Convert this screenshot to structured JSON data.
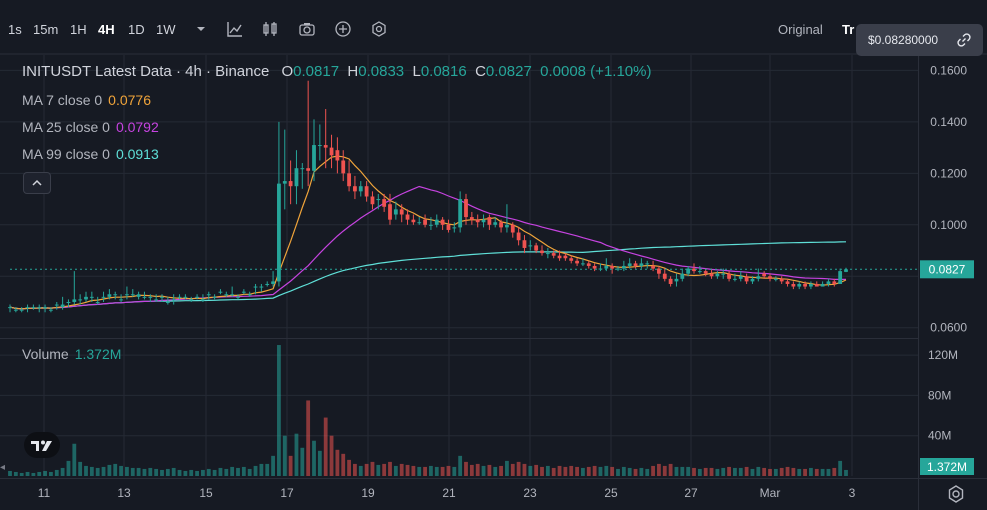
{
  "toolbar": {
    "timeframes": [
      "1s",
      "15m",
      "1H",
      "4H",
      "1D",
      "1W"
    ],
    "active_timeframe": "4H",
    "view_original": "Original",
    "view_tr": "Tr",
    "icons": [
      "chevron-down-icon",
      "indicators-icon",
      "candles-icon",
      "camera-icon",
      "plus-circle-icon",
      "settings-hex-icon"
    ]
  },
  "price_tooltip": {
    "value": "$0.08280000",
    "icon": "link-icon"
  },
  "legend": {
    "symbol_line": "INITUSDT Latest Data · 4h · Binance",
    "ohlc": {
      "o_label": "O",
      "o": "0.0817",
      "h_label": "H",
      "h": "0.0833",
      "l_label": "L",
      "l": "0.0816",
      "c_label": "C",
      "c": "0.0827",
      "change": "0.0008 (+1.10%)"
    },
    "ma7": {
      "label": "MA 7 close 0",
      "value": "0.0776",
      "color": "#f0a43a"
    },
    "ma25": {
      "label": "MA 25 close 0",
      "value": "0.0792",
      "color": "#c643e0"
    },
    "ma99": {
      "label": "MA 99 close 0",
      "value": "0.0913",
      "color": "#5fe0d8"
    },
    "collapse_icon": "chevron-up-icon"
  },
  "volume_legend": {
    "label": "Volume",
    "value": "1.372M"
  },
  "colors": {
    "up": "#26a69a",
    "down": "#ef5350",
    "bg": "#161a23",
    "grid": "#252a35"
  },
  "chart_data": {
    "type": "candlestick",
    "x_ticks": [
      "11",
      "13",
      "15",
      "17",
      "19",
      "21",
      "23",
      "25",
      "27",
      "Mar",
      "3"
    ],
    "price_axis": {
      "ticks": [
        "0.1600",
        "0.1400",
        "0.1200",
        "0.1000",
        "0.0600"
      ],
      "ylim": [
        0.056,
        0.166
      ]
    },
    "last_price": "0.0827",
    "volume_axis": {
      "ticks": [
        "120M",
        "80M",
        "40M"
      ],
      "ylim": [
        0,
        135
      ]
    },
    "last_volume": "1.372M",
    "candles": [
      [
        0.068,
        0.068,
        0.069,
        0.066,
        5
      ],
      [
        0.067,
        0.067,
        0.068,
        0.066,
        4
      ],
      [
        0.067,
        0.067,
        0.068,
        0.066,
        3
      ],
      [
        0.068,
        0.068,
        0.069,
        0.066,
        4
      ],
      [
        0.068,
        0.068,
        0.069,
        0.067,
        3
      ],
      [
        0.068,
        0.068,
        0.069,
        0.066,
        4
      ],
      [
        0.068,
        0.068,
        0.069,
        0.066,
        5
      ],
      [
        0.067,
        0.067,
        0.068,
        0.066,
        4
      ],
      [
        0.069,
        0.069,
        0.07,
        0.067,
        6
      ],
      [
        0.068,
        0.069,
        0.072,
        0.067,
        8
      ],
      [
        0.07,
        0.07,
        0.071,
        0.068,
        15
      ],
      [
        0.07,
        0.071,
        0.082,
        0.069,
        32
      ],
      [
        0.071,
        0.071,
        0.073,
        0.069,
        14
      ],
      [
        0.071,
        0.072,
        0.074,
        0.07,
        10
      ],
      [
        0.072,
        0.072,
        0.074,
        0.07,
        9
      ],
      [
        0.07,
        0.07,
        0.072,
        0.069,
        8
      ],
      [
        0.072,
        0.072,
        0.074,
        0.07,
        9
      ],
      [
        0.072,
        0.073,
        0.075,
        0.071,
        11
      ],
      [
        0.073,
        0.073,
        0.074,
        0.071,
        12
      ],
      [
        0.071,
        0.071,
        0.073,
        0.07,
        10
      ],
      [
        0.073,
        0.073,
        0.076,
        0.071,
        9
      ],
      [
        0.073,
        0.073,
        0.075,
        0.072,
        8
      ],
      [
        0.072,
        0.073,
        0.074,
        0.071,
        8
      ],
      [
        0.072,
        0.072,
        0.074,
        0.071,
        7
      ],
      [
        0.072,
        0.072,
        0.073,
        0.07,
        8
      ],
      [
        0.071,
        0.071,
        0.073,
        0.07,
        7
      ],
      [
        0.072,
        0.072,
        0.073,
        0.07,
        6
      ],
      [
        0.07,
        0.07,
        0.072,
        0.069,
        7
      ],
      [
        0.071,
        0.071,
        0.073,
        0.069,
        8
      ],
      [
        0.072,
        0.072,
        0.073,
        0.071,
        6
      ],
      [
        0.072,
        0.072,
        0.073,
        0.071,
        5
      ],
      [
        0.071,
        0.071,
        0.072,
        0.07,
        6
      ],
      [
        0.072,
        0.072,
        0.073,
        0.071,
        5
      ],
      [
        0.071,
        0.071,
        0.073,
        0.07,
        6
      ],
      [
        0.073,
        0.073,
        0.074,
        0.071,
        7
      ],
      [
        0.072,
        0.072,
        0.073,
        0.071,
        6
      ],
      [
        0.074,
        0.074,
        0.075,
        0.073,
        8
      ],
      [
        0.073,
        0.073,
        0.074,
        0.072,
        7
      ],
      [
        0.073,
        0.073,
        0.076,
        0.072,
        9
      ],
      [
        0.072,
        0.072,
        0.073,
        0.071,
        8
      ],
      [
        0.074,
        0.074,
        0.075,
        0.073,
        9
      ],
      [
        0.073,
        0.073,
        0.074,
        0.072,
        7
      ],
      [
        0.076,
        0.076,
        0.077,
        0.073,
        10
      ],
      [
        0.076,
        0.076,
        0.077,
        0.074,
        12
      ],
      [
        0.077,
        0.077,
        0.078,
        0.076,
        12
      ],
      [
        0.077,
        0.078,
        0.082,
        0.076,
        20
      ],
      [
        0.078,
        0.116,
        0.14,
        0.076,
        130
      ],
      [
        0.116,
        0.117,
        0.137,
        0.106,
        40
      ],
      [
        0.117,
        0.115,
        0.125,
        0.108,
        20
      ],
      [
        0.115,
        0.122,
        0.129,
        0.108,
        42
      ],
      [
        0.122,
        0.122,
        0.124,
        0.114,
        28
      ],
      [
        0.122,
        0.121,
        0.156,
        0.115,
        75
      ],
      [
        0.121,
        0.131,
        0.141,
        0.117,
        35
      ],
      [
        0.131,
        0.131,
        0.139,
        0.125,
        25
      ],
      [
        0.131,
        0.13,
        0.145,
        0.122,
        58
      ],
      [
        0.13,
        0.127,
        0.135,
        0.122,
        40
      ],
      [
        0.129,
        0.125,
        0.134,
        0.12,
        26
      ],
      [
        0.125,
        0.12,
        0.129,
        0.117,
        22
      ],
      [
        0.12,
        0.115,
        0.125,
        0.113,
        16
      ],
      [
        0.115,
        0.113,
        0.119,
        0.11,
        12
      ],
      [
        0.113,
        0.115,
        0.117,
        0.111,
        10
      ],
      [
        0.115,
        0.111,
        0.117,
        0.109,
        12
      ],
      [
        0.111,
        0.108,
        0.113,
        0.106,
        14
      ],
      [
        0.11,
        0.11,
        0.112,
        0.106,
        11
      ],
      [
        0.11,
        0.107,
        0.112,
        0.105,
        12
      ],
      [
        0.108,
        0.102,
        0.112,
        0.1,
        14
      ],
      [
        0.104,
        0.106,
        0.109,
        0.102,
        10
      ],
      [
        0.106,
        0.104,
        0.108,
        0.101,
        12
      ],
      [
        0.104,
        0.102,
        0.106,
        0.1,
        11
      ],
      [
        0.102,
        0.101,
        0.104,
        0.1,
        10
      ],
      [
        0.101,
        0.101,
        0.103,
        0.1,
        9
      ],
      [
        0.102,
        0.1,
        0.104,
        0.099,
        9
      ],
      [
        0.1,
        0.1,
        0.103,
        0.098,
        10
      ],
      [
        0.1,
        0.102,
        0.104,
        0.099,
        9
      ],
      [
        0.102,
        0.1,
        0.103,
        0.098,
        9
      ],
      [
        0.1,
        0.098,
        0.102,
        0.097,
        10
      ],
      [
        0.099,
        0.099,
        0.101,
        0.097,
        9
      ],
      [
        0.099,
        0.11,
        0.113,
        0.097,
        20
      ],
      [
        0.11,
        0.103,
        0.112,
        0.1,
        14
      ],
      [
        0.103,
        0.102,
        0.105,
        0.1,
        11
      ],
      [
        0.102,
        0.101,
        0.104,
        0.099,
        12
      ],
      [
        0.101,
        0.102,
        0.104,
        0.099,
        10
      ],
      [
        0.103,
        0.1,
        0.104,
        0.098,
        11
      ],
      [
        0.1,
        0.101,
        0.103,
        0.099,
        9
      ],
      [
        0.101,
        0.099,
        0.102,
        0.097,
        10
      ],
      [
        0.099,
        0.1,
        0.108,
        0.097,
        15
      ],
      [
        0.1,
        0.097,
        0.101,
        0.095,
        12
      ],
      [
        0.097,
        0.094,
        0.099,
        0.092,
        14
      ],
      [
        0.094,
        0.091,
        0.096,
        0.089,
        12
      ],
      [
        0.092,
        0.092,
        0.094,
        0.09,
        10
      ],
      [
        0.092,
        0.09,
        0.093,
        0.089,
        11
      ],
      [
        0.09,
        0.089,
        0.092,
        0.088,
        9
      ],
      [
        0.089,
        0.089,
        0.091,
        0.087,
        10
      ],
      [
        0.089,
        0.088,
        0.09,
        0.087,
        8
      ],
      [
        0.088,
        0.087,
        0.09,
        0.086,
        10
      ],
      [
        0.088,
        0.087,
        0.089,
        0.086,
        9
      ],
      [
        0.087,
        0.086,
        0.088,
        0.085,
        10
      ],
      [
        0.086,
        0.085,
        0.087,
        0.084,
        9
      ],
      [
        0.085,
        0.085,
        0.087,
        0.084,
        8
      ],
      [
        0.085,
        0.084,
        0.086,
        0.083,
        9
      ],
      [
        0.084,
        0.083,
        0.085,
        0.082,
        10
      ],
      [
        0.083,
        0.083,
        0.085,
        0.082,
        9
      ],
      [
        0.083,
        0.084,
        0.087,
        0.082,
        10
      ],
      [
        0.084,
        0.083,
        0.085,
        0.081,
        9
      ],
      [
        0.083,
        0.083,
        0.084,
        0.082,
        7
      ],
      [
        0.083,
        0.084,
        0.086,
        0.082,
        9
      ],
      [
        0.084,
        0.085,
        0.087,
        0.083,
        8
      ],
      [
        0.085,
        0.084,
        0.086,
        0.083,
        7
      ],
      [
        0.084,
        0.085,
        0.087,
        0.083,
        8
      ],
      [
        0.085,
        0.085,
        0.086,
        0.083,
        7
      ],
      [
        0.084,
        0.083,
        0.086,
        0.082,
        10
      ],
      [
        0.083,
        0.081,
        0.084,
        0.079,
        12
      ],
      [
        0.081,
        0.079,
        0.083,
        0.078,
        10
      ],
      [
        0.079,
        0.077,
        0.08,
        0.076,
        12
      ],
      [
        0.078,
        0.079,
        0.081,
        0.076,
        9
      ],
      [
        0.079,
        0.081,
        0.083,
        0.078,
        9
      ],
      [
        0.081,
        0.083,
        0.084,
        0.08,
        9
      ],
      [
        0.083,
        0.082,
        0.085,
        0.081,
        8
      ],
      [
        0.082,
        0.082,
        0.084,
        0.081,
        7
      ],
      [
        0.082,
        0.081,
        0.083,
        0.08,
        8
      ],
      [
        0.081,
        0.08,
        0.083,
        0.079,
        8
      ],
      [
        0.08,
        0.081,
        0.082,
        0.079,
        7
      ],
      [
        0.081,
        0.081,
        0.083,
        0.079,
        8
      ],
      [
        0.081,
        0.079,
        0.082,
        0.078,
        9
      ],
      [
        0.079,
        0.079,
        0.081,
        0.078,
        8
      ],
      [
        0.079,
        0.08,
        0.082,
        0.078,
        8
      ],
      [
        0.08,
        0.078,
        0.081,
        0.077,
        9
      ],
      [
        0.078,
        0.079,
        0.08,
        0.077,
        7
      ],
      [
        0.079,
        0.08,
        0.083,
        0.078,
        9
      ],
      [
        0.081,
        0.08,
        0.082,
        0.079,
        8
      ],
      [
        0.08,
        0.079,
        0.081,
        0.078,
        7
      ],
      [
        0.079,
        0.079,
        0.08,
        0.078,
        7
      ],
      [
        0.079,
        0.078,
        0.08,
        0.077,
        8
      ],
      [
        0.078,
        0.077,
        0.079,
        0.076,
        9
      ],
      [
        0.077,
        0.076,
        0.078,
        0.075,
        8
      ],
      [
        0.076,
        0.077,
        0.078,
        0.075,
        7
      ],
      [
        0.077,
        0.076,
        0.078,
        0.075,
        7
      ],
      [
        0.076,
        0.077,
        0.078,
        0.075,
        8
      ],
      [
        0.077,
        0.076,
        0.078,
        0.076,
        7
      ],
      [
        0.076,
        0.077,
        0.078,
        0.076,
        7
      ],
      [
        0.077,
        0.078,
        0.079,
        0.076,
        7
      ],
      [
        0.078,
        0.077,
        0.079,
        0.076,
        8
      ],
      [
        0.077,
        0.082,
        0.083,
        0.077,
        15
      ],
      [
        0.0817,
        0.0827,
        0.0833,
        0.0816,
        6
      ]
    ]
  }
}
